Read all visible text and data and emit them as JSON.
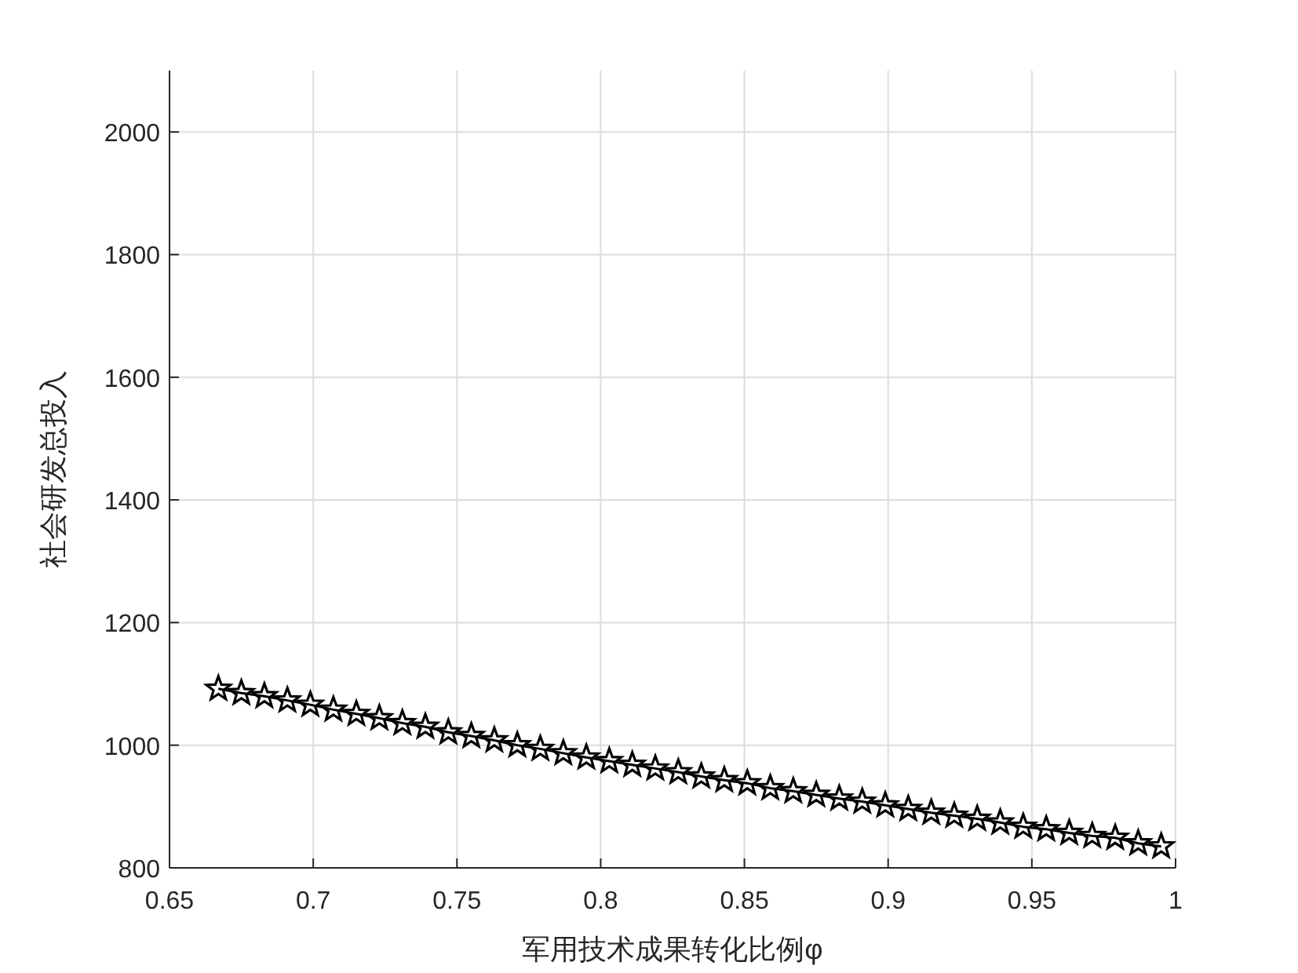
{
  "chart_data": {
    "type": "line",
    "xlabel": "军用技术成果转化比例φ",
    "ylabel": "社会研发总投入",
    "x": [
      0.667,
      0.675,
      0.683,
      0.691,
      0.699,
      0.707,
      0.715,
      0.723,
      0.731,
      0.739,
      0.747,
      0.755,
      0.763,
      0.771,
      0.779,
      0.787,
      0.795,
      0.803,
      0.811,
      0.819,
      0.827,
      0.835,
      0.843,
      0.851,
      0.859,
      0.867,
      0.875,
      0.883,
      0.891,
      0.899,
      0.907,
      0.915,
      0.923,
      0.931,
      0.939,
      0.947,
      0.955,
      0.963,
      0.971,
      0.979,
      0.987,
      0.995
    ],
    "values": [
      1092,
      1085,
      1080,
      1073,
      1066,
      1058,
      1051,
      1044,
      1036,
      1030,
      1021,
      1015,
      1008,
      1000,
      994,
      987,
      980,
      974,
      968,
      962,
      956,
      949,
      943,
      938,
      930,
      925,
      919,
      913,
      908,
      902,
      896,
      890,
      885,
      880,
      874,
      867,
      863,
      857,
      852,
      849,
      840,
      835
    ],
    "color": "#000000",
    "marker": "star",
    "line_style": "solid",
    "grid": true,
    "xlim": [
      0.65,
      1
    ],
    "ylim": [
      800,
      2100
    ],
    "xticks": [
      0.65,
      0.7,
      0.75,
      0.8,
      0.85,
      0.9,
      0.95,
      1
    ],
    "yticks": [
      800,
      1000,
      1200,
      1400,
      1600,
      1800,
      2000
    ]
  }
}
